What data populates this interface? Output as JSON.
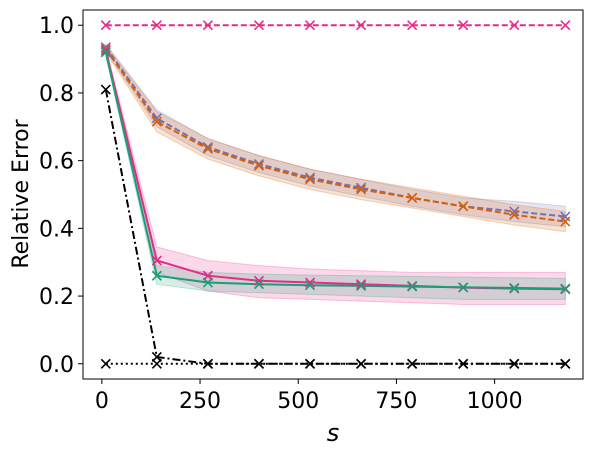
{
  "chart_data": {
    "type": "line",
    "title": "",
    "xlabel": "s",
    "ylabel": "Relative Error",
    "xlim": [
      -48,
      1225
    ],
    "ylim": [
      -0.045,
      1.045
    ],
    "xticks": [
      0,
      250,
      500,
      750,
      1000
    ],
    "yticks": [
      0.0,
      0.2,
      0.4,
      0.6,
      0.8,
      1.0
    ],
    "xtick_labels": [
      "0",
      "250",
      "500",
      "750",
      "1000"
    ],
    "ytick_labels": [
      "0.0",
      "0.2",
      "0.4",
      "0.6",
      "0.8",
      "1.0"
    ],
    "grid": false,
    "legend": "none",
    "x": [
      10,
      140,
      270,
      400,
      530,
      660,
      790,
      920,
      1050,
      1180
    ],
    "series": [
      {
        "color": "#e7298a",
        "dash": "dashed",
        "marker": "x",
        "values": [
          1.0,
          1.0,
          1.0,
          1.0,
          1.0,
          1.0,
          1.0,
          1.0,
          1.0,
          1.0
        ]
      },
      {
        "color": "#7570b3",
        "dash": "dashed",
        "marker": "x",
        "values": [
          0.935,
          0.725,
          0.64,
          0.59,
          0.55,
          0.52,
          0.49,
          0.465,
          0.45,
          0.435
        ],
        "band_lower": [
          0.925,
          0.7,
          0.615,
          0.565,
          0.525,
          0.495,
          0.465,
          0.44,
          0.42,
          0.405
        ],
        "band_upper": [
          0.945,
          0.75,
          0.665,
          0.615,
          0.575,
          0.545,
          0.515,
          0.49,
          0.48,
          0.465
        ]
      },
      {
        "color": "#d95f02",
        "dash": "dashed",
        "marker": "x",
        "values": [
          0.93,
          0.715,
          0.635,
          0.585,
          0.545,
          0.515,
          0.49,
          0.465,
          0.44,
          0.42
        ],
        "band_lower": [
          0.92,
          0.685,
          0.605,
          0.555,
          0.515,
          0.485,
          0.46,
          0.435,
          0.41,
          0.39
        ],
        "band_upper": [
          0.94,
          0.745,
          0.665,
          0.615,
          0.575,
          0.545,
          0.52,
          0.495,
          0.47,
          0.45
        ]
      },
      {
        "color": "#e7298a",
        "dash": "solid",
        "marker": "x",
        "values": [
          0.925,
          0.305,
          0.26,
          0.245,
          0.24,
          0.235,
          0.23,
          0.225,
          0.222,
          0.22
        ],
        "band_lower": [
          0.915,
          0.27,
          0.215,
          0.195,
          0.19,
          0.185,
          0.18,
          0.175,
          0.175,
          0.175
        ],
        "band_upper": [
          0.935,
          0.345,
          0.305,
          0.29,
          0.28,
          0.275,
          0.27,
          0.27,
          0.27,
          0.27
        ]
      },
      {
        "color": "#1b9e77",
        "dash": "solid",
        "marker": "x",
        "values": [
          0.92,
          0.26,
          0.24,
          0.235,
          0.232,
          0.23,
          0.228,
          0.226,
          0.224,
          0.222
        ],
        "band_lower": [
          0.91,
          0.235,
          0.215,
          0.21,
          0.205,
          0.2,
          0.195,
          0.19,
          0.19,
          0.19
        ],
        "band_upper": [
          0.93,
          0.29,
          0.27,
          0.265,
          0.262,
          0.26,
          0.258,
          0.256,
          0.254,
          0.252
        ]
      },
      {
        "color": "#000000",
        "dash": "dashdot",
        "marker": "x",
        "values": [
          0.81,
          0.02,
          0.0,
          0.0,
          0.0,
          0.0,
          0.0,
          0.0,
          0.0,
          0.0
        ]
      },
      {
        "color": "#000000",
        "dash": "dotted",
        "marker": "x",
        "values": [
          0.0,
          0.0,
          0.0,
          0.0,
          0.0,
          0.0,
          0.0,
          0.0,
          0.0,
          0.0
        ]
      }
    ]
  }
}
